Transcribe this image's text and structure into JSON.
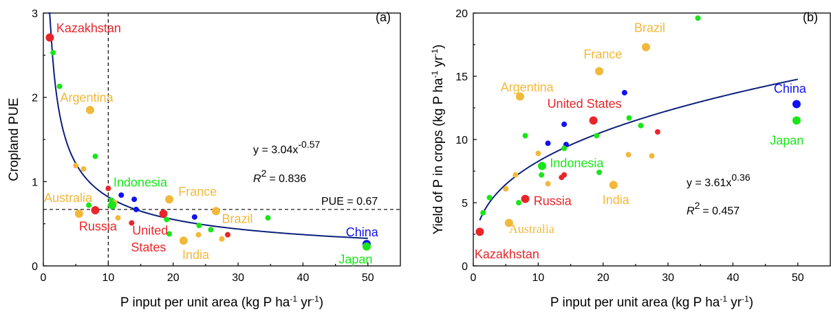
{
  "colors": {
    "red": "#e8262a",
    "green": "#19e619",
    "orange": "#f2b83a",
    "blue": "#1212ee",
    "fit_line": "#0a1f7a"
  },
  "chart_data": [
    {
      "type": "scatter",
      "panel_label": "(a)",
      "xlabel": "P input per unit area (kg P ha-1 yr-1)",
      "ylabel": "Cropland PUE",
      "xlim": [
        0,
        55
      ],
      "ylim": [
        0,
        3
      ],
      "xticks": [
        0,
        10,
        20,
        30,
        40,
        50
      ],
      "yticks": [
        0,
        1,
        2,
        3
      ],
      "fit": {
        "a": 3.04,
        "b": -0.57,
        "x_from": 0.75,
        "x_to": 50
      },
      "equation_text": "y = 3.04x",
      "equation_exponent": "-0.57",
      "r2_label": "R",
      "r2_value": "= 0.836",
      "reference_lines": [
        {
          "orientation": "vertical",
          "value": 10
        },
        {
          "orientation": "horizontal",
          "value": 0.67,
          "label": "PUE = 0.67"
        }
      ],
      "points": [
        {
          "x": 1.0,
          "y": 2.71,
          "color": "red",
          "size": "large",
          "label": "Kazakhstan"
        },
        {
          "x": 1.5,
          "y": 2.53,
          "color": "green",
          "size": "small"
        },
        {
          "x": 2.5,
          "y": 2.13,
          "color": "green",
          "size": "small"
        },
        {
          "x": 7.2,
          "y": 1.85,
          "color": "orange",
          "size": "large",
          "label": "Argentina"
        },
        {
          "x": 8.0,
          "y": 1.3,
          "color": "green",
          "size": "small"
        },
        {
          "x": 5.0,
          "y": 1.19,
          "color": "orange",
          "size": "small"
        },
        {
          "x": 6.2,
          "y": 1.15,
          "color": "orange",
          "size": "small"
        },
        {
          "x": 10.0,
          "y": 0.92,
          "color": "red",
          "size": "small"
        },
        {
          "x": 12.0,
          "y": 0.84,
          "color": "blue",
          "size": "small"
        },
        {
          "x": 14.0,
          "y": 0.79,
          "color": "blue",
          "size": "small"
        },
        {
          "x": 10.5,
          "y": 0.78,
          "color": "green",
          "size": "small"
        },
        {
          "x": 11.0,
          "y": 0.75,
          "color": "orange",
          "size": "small"
        },
        {
          "x": 10.6,
          "y": 0.72,
          "color": "green",
          "size": "large",
          "label": "Indonesia"
        },
        {
          "x": 7.0,
          "y": 0.72,
          "color": "green",
          "size": "small"
        },
        {
          "x": 19.4,
          "y": 0.79,
          "color": "orange",
          "size": "large",
          "label": "France"
        },
        {
          "x": 14.3,
          "y": 0.67,
          "color": "blue",
          "size": "small"
        },
        {
          "x": 8.0,
          "y": 0.66,
          "color": "red",
          "size": "large",
          "label": "Russia"
        },
        {
          "x": 5.5,
          "y": 0.62,
          "color": "orange",
          "size": "large",
          "label": "Australia"
        },
        {
          "x": 26.6,
          "y": 0.65,
          "color": "orange",
          "size": "large",
          "label": "Brazil"
        },
        {
          "x": 18.5,
          "y": 0.62,
          "color": "red",
          "size": "large",
          "label": "United States"
        },
        {
          "x": 11.5,
          "y": 0.57,
          "color": "orange",
          "size": "small"
        },
        {
          "x": 19.0,
          "y": 0.55,
          "color": "green",
          "size": "small"
        },
        {
          "x": 23.3,
          "y": 0.58,
          "color": "blue",
          "size": "small"
        },
        {
          "x": 34.6,
          "y": 0.57,
          "color": "green",
          "size": "small"
        },
        {
          "x": 13.6,
          "y": 0.51,
          "color": "red",
          "size": "small"
        },
        {
          "x": 24.0,
          "y": 0.48,
          "color": "green",
          "size": "small"
        },
        {
          "x": 25.8,
          "y": 0.43,
          "color": "green",
          "size": "small"
        },
        {
          "x": 19.4,
          "y": 0.38,
          "color": "green",
          "size": "small"
        },
        {
          "x": 23.9,
          "y": 0.37,
          "color": "orange",
          "size": "small"
        },
        {
          "x": 28.4,
          "y": 0.37,
          "color": "red",
          "size": "small"
        },
        {
          "x": 27.5,
          "y": 0.32,
          "color": "orange",
          "size": "small"
        },
        {
          "x": 21.6,
          "y": 0.3,
          "color": "orange",
          "size": "large",
          "label": "India"
        },
        {
          "x": 49.8,
          "y": 0.26,
          "color": "blue",
          "size": "large",
          "label": "China"
        },
        {
          "x": 49.8,
          "y": 0.23,
          "color": "green",
          "size": "large",
          "label": "Japan"
        }
      ],
      "labels": [
        {
          "text": "Kazakhstan",
          "color": "red",
          "x": 2.0,
          "y": 2.77
        },
        {
          "text": "Argentina",
          "color": "orange",
          "x": 2.6,
          "y": 1.95
        },
        {
          "text": "Indonesia",
          "color": "green",
          "x": 10.8,
          "y": 0.94
        },
        {
          "text": "Australia",
          "color": "orange",
          "x": 0.1,
          "y": 0.76
        },
        {
          "text": "France",
          "color": "orange",
          "x": 20.8,
          "y": 0.83
        },
        {
          "text": "Russia",
          "color": "red",
          "x": 5.5,
          "y": 0.42
        },
        {
          "text": "Brazil",
          "color": "orange",
          "x": 27.5,
          "y": 0.51
        },
        {
          "text": "United",
          "color": "red",
          "x": 13.7,
          "y": 0.37
        },
        {
          "text": "States",
          "color": "red",
          "x": 13.5,
          "y": 0.17
        },
        {
          "text": "India",
          "color": "orange",
          "x": 21.4,
          "y": 0.08
        },
        {
          "text": "China",
          "color": "blue",
          "x": 46.6,
          "y": 0.35
        },
        {
          "text": "Japan",
          "color": "green",
          "x": 45.5,
          "y": 0.03
        }
      ]
    },
    {
      "type": "scatter",
      "panel_label": "(b)",
      "xlabel": "P input per unit area (kg P ha-1 yr-1)",
      "ylabel": "Yield of P in crops (kg P ha-1 yr-1)",
      "xlim": [
        0,
        55
      ],
      "ylim": [
        0,
        20
      ],
      "xticks": [
        0,
        10,
        20,
        30,
        40,
        50
      ],
      "yticks": [
        0,
        5,
        10,
        15,
        20
      ],
      "fit": {
        "a": 3.61,
        "b": 0.36,
        "x_from": 1.0,
        "x_to": 50
      },
      "equation_text": "y = 3.61x",
      "equation_exponent": "0.36",
      "r2_label": "R",
      "r2_value": "= 0.457",
      "points": [
        {
          "x": 34.6,
          "y": 19.6,
          "color": "green",
          "size": "small"
        },
        {
          "x": 26.6,
          "y": 17.3,
          "color": "orange",
          "size": "large",
          "label": "Brazil"
        },
        {
          "x": 19.4,
          "y": 15.4,
          "color": "orange",
          "size": "large",
          "label": "France"
        },
        {
          "x": 23.3,
          "y": 13.7,
          "color": "blue",
          "size": "small"
        },
        {
          "x": 7.2,
          "y": 13.4,
          "color": "orange",
          "size": "large",
          "label": "Argentina"
        },
        {
          "x": 49.8,
          "y": 12.8,
          "color": "blue",
          "size": "large",
          "label": "China"
        },
        {
          "x": 49.8,
          "y": 11.5,
          "color": "green",
          "size": "large",
          "label": "Japan"
        },
        {
          "x": 18.5,
          "y": 11.5,
          "color": "red",
          "size": "large",
          "label": "United States"
        },
        {
          "x": 14.0,
          "y": 11.2,
          "color": "blue",
          "size": "small"
        },
        {
          "x": 24.0,
          "y": 11.7,
          "color": "green",
          "size": "small"
        },
        {
          "x": 25.8,
          "y": 11.1,
          "color": "green",
          "size": "small"
        },
        {
          "x": 28.4,
          "y": 10.6,
          "color": "red",
          "size": "small"
        },
        {
          "x": 8.0,
          "y": 10.3,
          "color": "green",
          "size": "small"
        },
        {
          "x": 19.0,
          "y": 10.3,
          "color": "green",
          "size": "small"
        },
        {
          "x": 11.5,
          "y": 9.7,
          "color": "blue",
          "size": "small"
        },
        {
          "x": 14.3,
          "y": 9.6,
          "color": "blue",
          "size": "small"
        },
        {
          "x": 14.0,
          "y": 9.3,
          "color": "green",
          "size": "small"
        },
        {
          "x": 10.0,
          "y": 8.9,
          "color": "orange",
          "size": "small"
        },
        {
          "x": 23.9,
          "y": 8.8,
          "color": "orange",
          "size": "small"
        },
        {
          "x": 27.5,
          "y": 8.7,
          "color": "orange",
          "size": "small"
        },
        {
          "x": 10.6,
          "y": 7.9,
          "color": "green",
          "size": "large",
          "label": "Indonesia"
        },
        {
          "x": 10.5,
          "y": 7.2,
          "color": "green",
          "size": "small"
        },
        {
          "x": 6.5,
          "y": 7.2,
          "color": "orange",
          "size": "small"
        },
        {
          "x": 14.0,
          "y": 7.2,
          "color": "red",
          "size": "small"
        },
        {
          "x": 19.4,
          "y": 7.4,
          "color": "green",
          "size": "small"
        },
        {
          "x": 13.6,
          "y": 7.0,
          "color": "red",
          "size": "small"
        },
        {
          "x": 11.5,
          "y": 6.5,
          "color": "orange",
          "size": "small"
        },
        {
          "x": 21.6,
          "y": 6.4,
          "color": "orange",
          "size": "large",
          "label": "India"
        },
        {
          "x": 5.0,
          "y": 6.1,
          "color": "orange",
          "size": "small"
        },
        {
          "x": 2.5,
          "y": 5.4,
          "color": "green",
          "size": "small"
        },
        {
          "x": 8.0,
          "y": 5.3,
          "color": "red",
          "size": "large",
          "label": "Russia"
        },
        {
          "x": 7.0,
          "y": 5.0,
          "color": "green",
          "size": "small"
        },
        {
          "x": 1.5,
          "y": 4.2,
          "color": "green",
          "size": "small"
        },
        {
          "x": 5.5,
          "y": 3.4,
          "color": "orange",
          "size": "large",
          "label": "Australia"
        },
        {
          "x": 1.0,
          "y": 2.7,
          "color": "red",
          "size": "large",
          "label": "Kazakhstan"
        }
      ],
      "labels": [
        {
          "text": "Brazil",
          "color": "orange",
          "x": 24.8,
          "y": 18.5
        },
        {
          "text": "France",
          "color": "orange",
          "x": 17.0,
          "y": 16.4
        },
        {
          "text": "Argentina",
          "color": "orange",
          "x": 4.2,
          "y": 13.8
        },
        {
          "text": "United States",
          "color": "red",
          "x": 11.4,
          "y": 12.5
        },
        {
          "text": "China",
          "color": "blue",
          "x": 46.3,
          "y": 13.7
        },
        {
          "text": "Japan",
          "color": "green",
          "x": 45.7,
          "y": 9.6
        },
        {
          "text": "Indonesia",
          "color": "green",
          "x": 11.8,
          "y": 7.8
        },
        {
          "text": "India",
          "color": "orange",
          "x": 19.9,
          "y": 4.9
        },
        {
          "text": "Russia",
          "color": "red",
          "x": 9.3,
          "y": 4.8
        },
        {
          "text": "Australia",
          "color": "orange",
          "x": 5.5,
          "y": 2.6,
          "serif": true
        },
        {
          "text": "Kazakhstan",
          "color": "red",
          "x": 0.2,
          "y": 0.6
        }
      ]
    }
  ]
}
